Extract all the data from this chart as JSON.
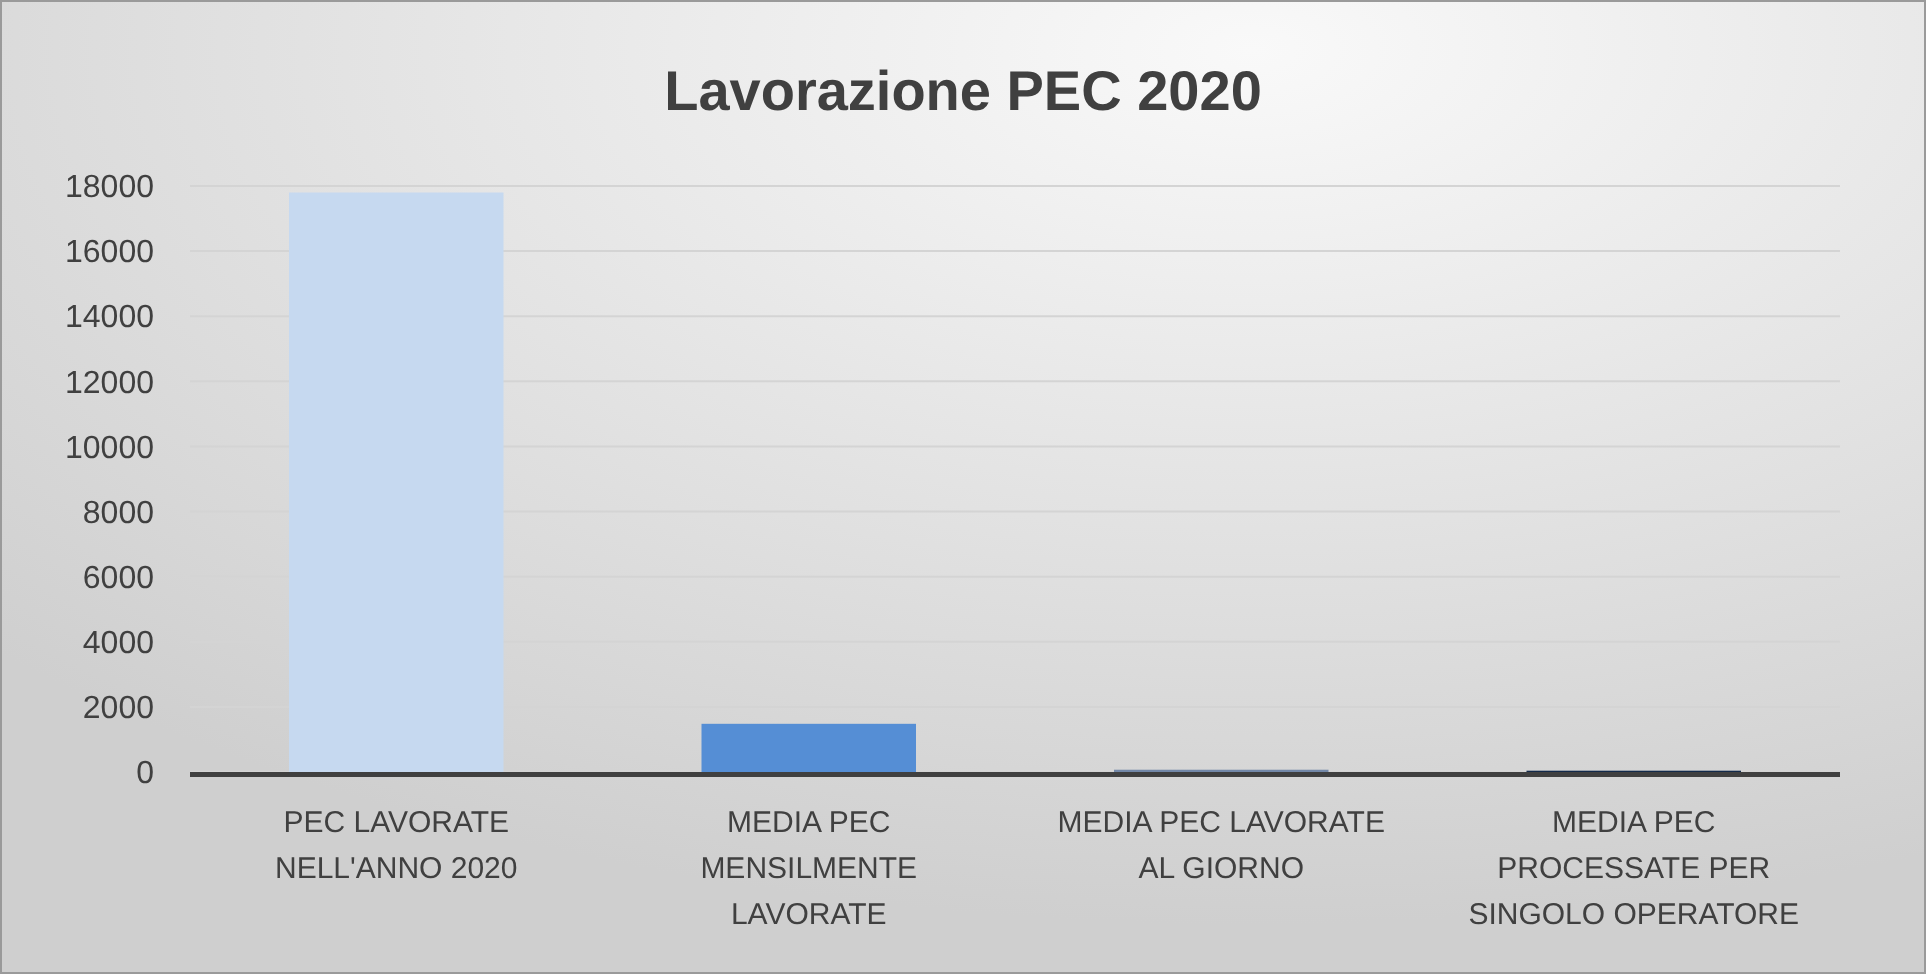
{
  "chart_data": {
    "type": "bar",
    "title": "Lavorazione PEC 2020",
    "categories": [
      "PEC LAVORATE NELL'ANNO 2020",
      "MEDIA PEC MENSILMENTE LAVORATE",
      "MEDIA PEC LAVORATE AL GIORNO",
      "MEDIA PEC PROCESSATE PER SINGOLO OPERATORE"
    ],
    "values": [
      17800,
      1480,
      70,
      40
    ],
    "colors": [
      "#c6d9f0",
      "#558ed5",
      "#7388a8",
      "#132a4a"
    ],
    "ylim": [
      0,
      18000
    ],
    "yticks": [
      0,
      2000,
      4000,
      6000,
      8000,
      10000,
      12000,
      14000,
      16000,
      18000
    ],
    "grid": "y"
  }
}
